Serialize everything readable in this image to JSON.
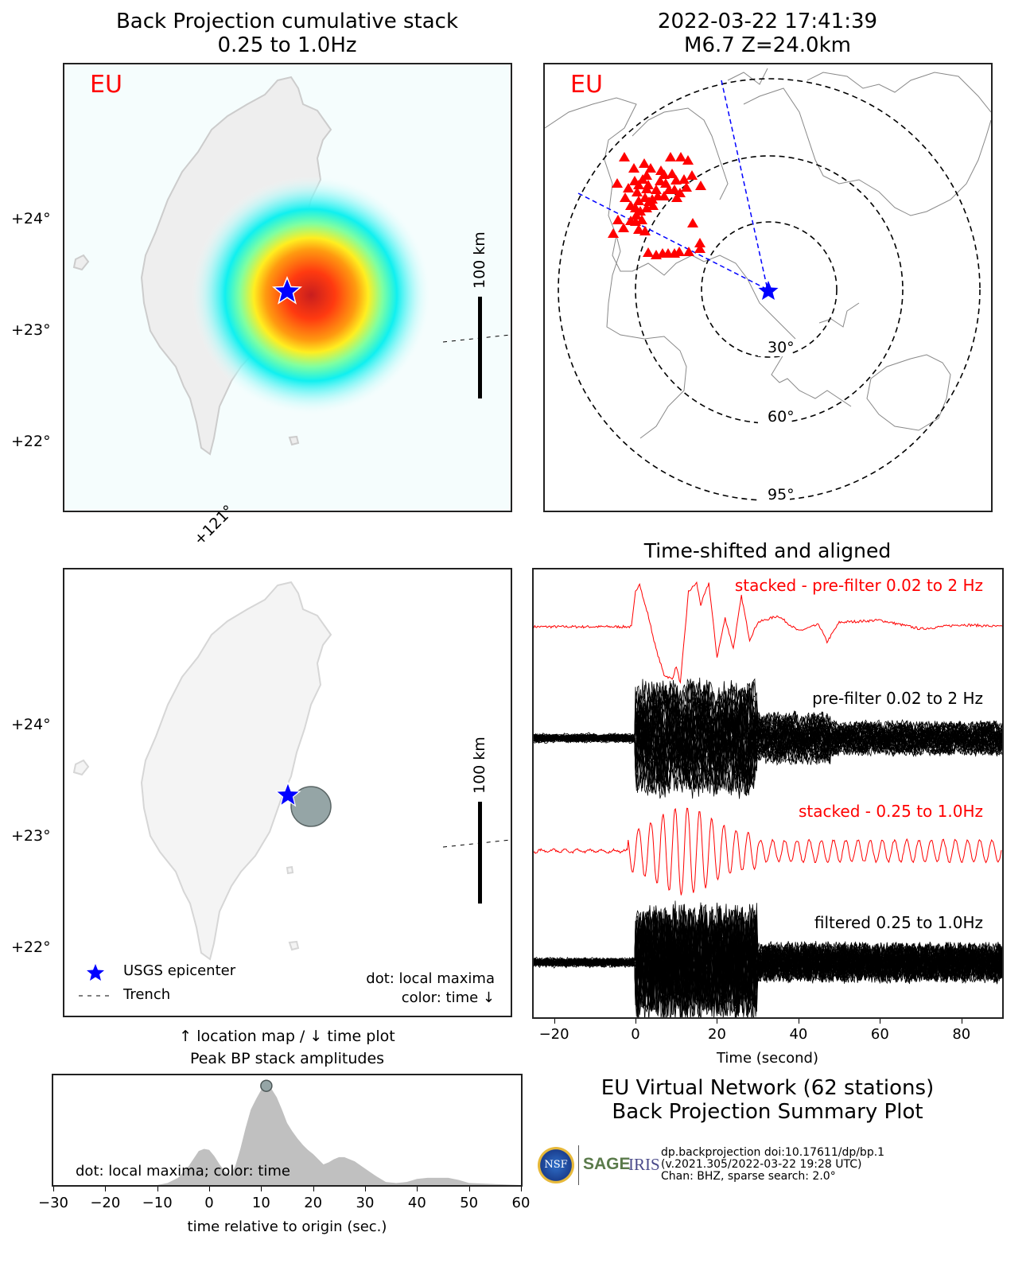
{
  "header": {
    "left_title_line1": "Back Projection cumulative stack",
    "left_title_line2": "0.25 to 1.0Hz",
    "right_title_line1": "2022-03-22 17:41:39",
    "right_title_line2": "M6.7 Z=24.0km"
  },
  "network": "EU",
  "colors": {
    "station": "#ff0000",
    "epicenter": "#0000ff",
    "stacked_trace": "#ff0000",
    "trace": "#000000",
    "peak_fill": "#c0c0c0",
    "maxima_dot": "#95a5a6",
    "land": "#f2f2f2",
    "coast": "#cccccc"
  },
  "map_top": {
    "lat_ticks": [
      "+24°",
      "+23°",
      "+22°"
    ],
    "scale_label": "100 km"
  },
  "map_bottom": {
    "lon_tick": "+121°",
    "lat_ticks": [
      "+24°",
      "+23°",
      "+22°"
    ],
    "scale_label": "100 km",
    "legend": {
      "epicenter": "USGS epicenter",
      "trench": "Trench"
    },
    "note_line1": "dot: local maxima",
    "note_line2": "color: time ↓",
    "caption": "↑ location map / ↓ time plot"
  },
  "station_map": {
    "distance_rings": [
      "30°",
      "60°",
      "95°"
    ]
  },
  "chart_data": [
    {
      "type": "line",
      "title": "Time-shifted and aligned",
      "xlabel": "Time (second)",
      "ylabel": "",
      "xlim": [
        -25,
        90
      ],
      "x_ticks": [
        "−20",
        "0",
        "20",
        "40",
        "60",
        "80"
      ],
      "x_tick_values": [
        -20,
        0,
        20,
        40,
        60,
        80
      ],
      "series": [
        {
          "name": "stacked - pre-filter 0.02 to 2 Hz",
          "color": "#ff0000",
          "onset": 0
        },
        {
          "name": "pre-filter 0.02 to 2 Hz",
          "color": "#000000",
          "onset": 0
        },
        {
          "name": "stacked - 0.25 to 1.0Hz",
          "color": "#ff0000",
          "onset": 0
        },
        {
          "name": "filtered 0.25 to 1.0Hz",
          "color": "#000000",
          "onset": 0
        }
      ]
    },
    {
      "type": "area",
      "title": "Peak BP stack amplitudes",
      "xlabel": "time relative to origin (sec.)",
      "ylabel": "",
      "xlim": [
        -30,
        60
      ],
      "ylim": [
        0,
        1.0
      ],
      "x_ticks": [
        "−30",
        "−20",
        "−10",
        "0",
        "10",
        "20",
        "30",
        "40",
        "50",
        "60"
      ],
      "x_tick_values": [
        -30,
        -20,
        -10,
        0,
        10,
        20,
        30,
        40,
        50,
        60
      ],
      "x": [
        -30,
        -10,
        -8,
        -6,
        -4,
        -2,
        -1,
        0,
        1,
        2,
        3,
        4,
        5,
        6,
        7,
        8,
        9,
        10,
        11,
        12,
        13,
        14,
        15,
        16,
        17,
        18,
        19,
        20,
        21,
        22,
        23,
        24,
        25,
        26,
        27,
        28,
        30,
        32,
        34,
        36,
        38,
        40,
        42,
        44,
        46,
        48,
        50,
        55,
        60
      ],
      "values": [
        0,
        0,
        0.02,
        0.07,
        0.18,
        0.33,
        0.35,
        0.34,
        0.28,
        0.2,
        0.13,
        0.1,
        0.18,
        0.35,
        0.55,
        0.73,
        0.83,
        0.92,
        0.96,
        0.93,
        0.85,
        0.73,
        0.6,
        0.52,
        0.45,
        0.39,
        0.34,
        0.3,
        0.25,
        0.2,
        0.22,
        0.25,
        0.27,
        0.27,
        0.25,
        0.23,
        0.16,
        0.09,
        0.03,
        0.02,
        0.03,
        0.06,
        0.07,
        0.07,
        0.07,
        0.05,
        0.02,
        0.01,
        0.0
      ],
      "local_maxima": [
        {
          "x": 11,
          "y": 0.96
        }
      ],
      "annotation": "dot: local maxima; color: time"
    }
  ],
  "footer": {
    "title_line1": "EU Virtual Network (62 stations)",
    "title_line2": "Back Projection Summary Plot",
    "credit_line1": "dp.backprojection doi:10.17611/dp/bp.1",
    "credit_line2": "(v.2021.305/2022-03-22 19:28 UTC)",
    "credit_line3": "Chan: BHZ, sparse search: 2.0°",
    "logo_nsf": "NSF",
    "logo_sage": "SAGE",
    "logo_iris": "IRIS"
  }
}
